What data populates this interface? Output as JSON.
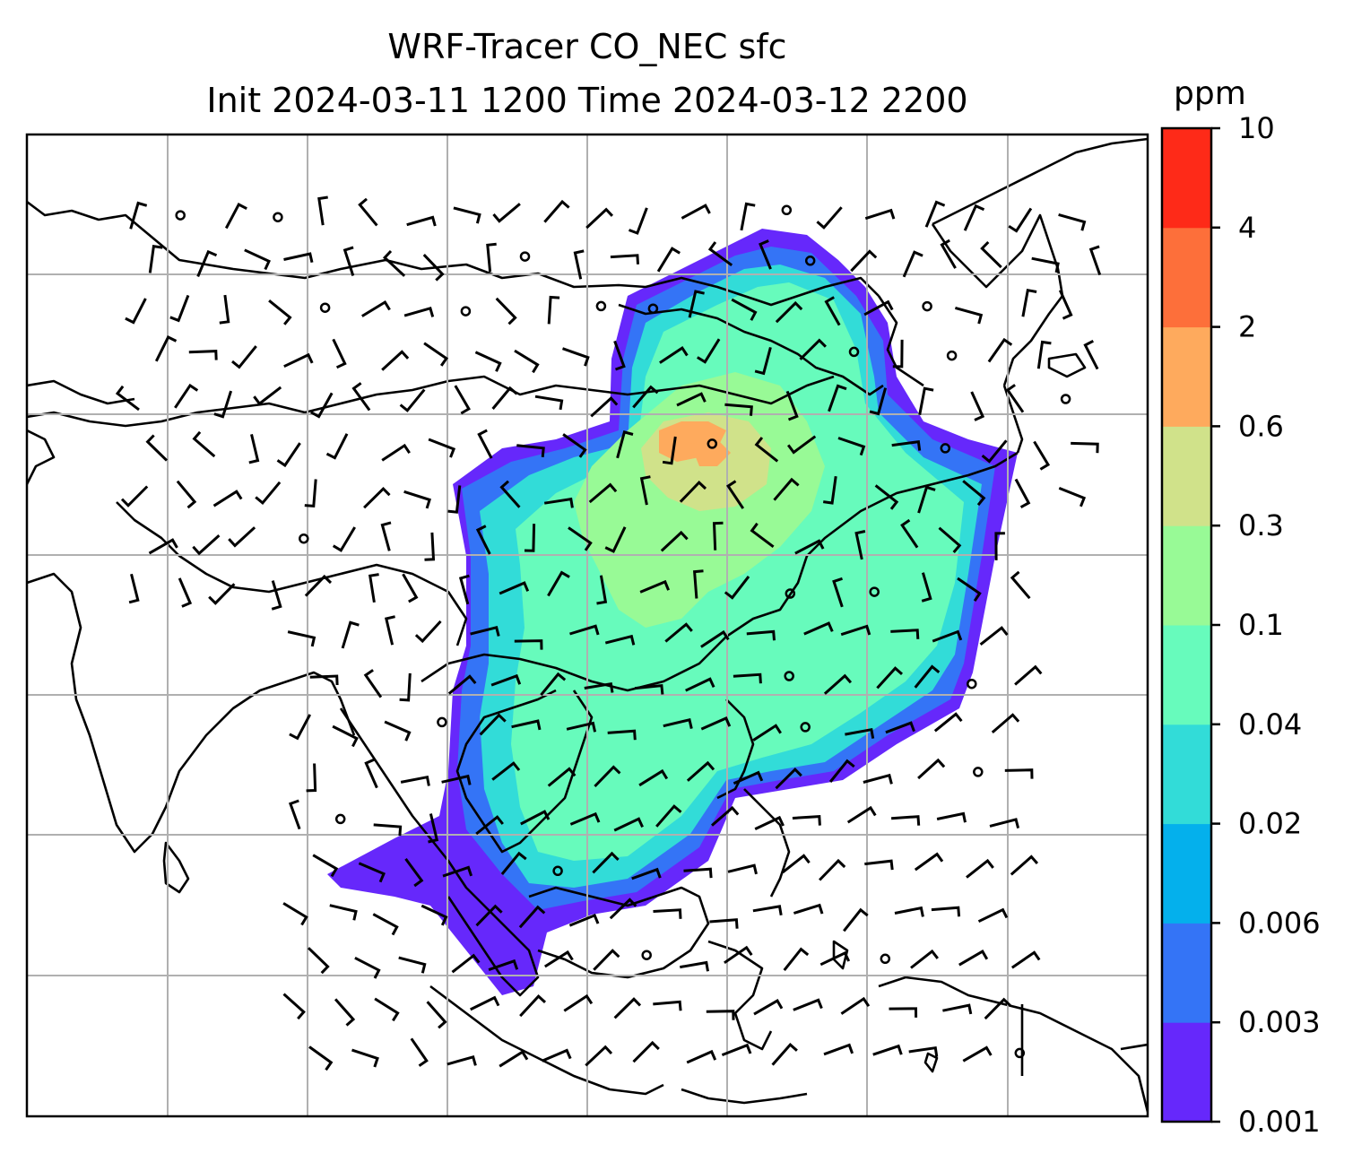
{
  "title": {
    "line1": "WRF-Tracer CO_NEC sfc",
    "line2": "Init 2024-03-11 1200 Time 2024-03-12 2200"
  },
  "colorbar": {
    "unit": "ppm",
    "ticks": [
      "0.001",
      "0.003",
      "0.006",
      "0.02",
      "0.04",
      "0.1",
      "0.3",
      "0.6",
      "2",
      "4",
      "10"
    ],
    "colors": [
      "#6628fb",
      "#3474f6",
      "#04b0ec",
      "#32dcd8",
      "#67fbbc",
      "#98fa96",
      "#d0e28a",
      "#feaa5d",
      "#fd6f3a",
      "#fe2a18"
    ]
  }
}
